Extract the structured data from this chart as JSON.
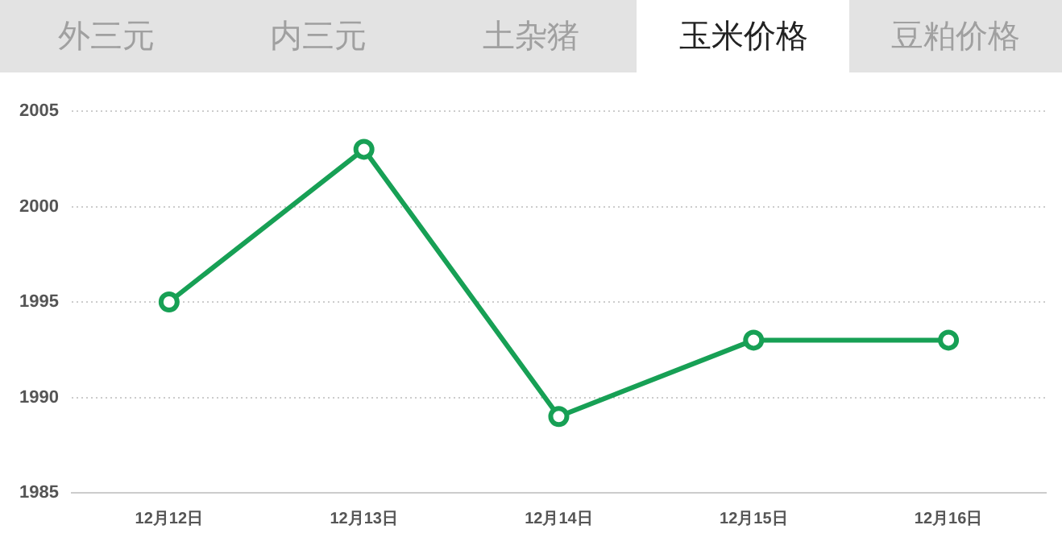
{
  "chart_data": {
    "type": "line",
    "annotations": [
      "外三元",
      "内三元",
      "土杂猪",
      "玉米价格",
      "豆粕价格"
    ],
    "categories": [
      "12月12日",
      "12月13日",
      "12月14日",
      "12月15日",
      "12月16日"
    ],
    "series": [
      {
        "color": "#17a055",
        "values": [
          1995,
          2003,
          1989,
          1993,
          1993
        ]
      }
    ],
    "ylim": [
      1985,
      2005
    ],
    "yticks": [
      1985,
      1990,
      1995,
      2000,
      2005
    ],
    "grid": "y",
    "marker": "circle",
    "line_style": "solid",
    "legend": false
  }
}
